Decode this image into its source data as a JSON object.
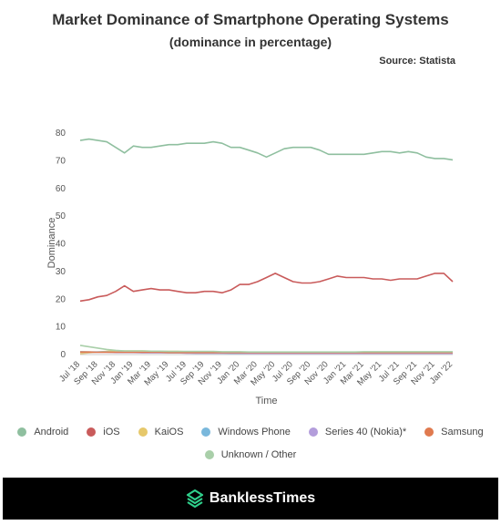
{
  "header": {
    "title": "Market Dominance of Smartphone Operating Systems",
    "subtitle": "(dominance in percentage)",
    "source": "Source: Statista"
  },
  "footer": {
    "brand": "BanklessTimes"
  },
  "colors": {
    "android": "#8fbf9f",
    "ios": "#c95b5b",
    "kaios": "#e6c86b",
    "windows_phone": "#7ab8dc",
    "series40": "#b39ddb",
    "samsung": "#e07a4f",
    "unknown": "#a9cfa9",
    "footer_bg": "#000000",
    "logo_accent": "#2fcf8b"
  },
  "chart_data": {
    "type": "line",
    "xlabel": "Time",
    "ylabel": "Dominance",
    "ylim": [
      0,
      80
    ],
    "yticks": [
      0,
      10,
      20,
      30,
      40,
      50,
      60,
      70,
      80
    ],
    "x": [
      "Jul '18",
      "Aug '18",
      "Sep '18",
      "Oct '18",
      "Nov '18",
      "Dec '18",
      "Jan '19",
      "Feb '19",
      "Mar '19",
      "Apr '19",
      "May '19",
      "Jun '19",
      "Jul '19",
      "Aug '19",
      "Sep '19",
      "Oct '19",
      "Nov '19",
      "Dec '19",
      "Jan '20",
      "Feb '20",
      "Mar '20",
      "Apr '20",
      "May '20",
      "Jun '20",
      "Jul '20",
      "Aug '20",
      "Sep '20",
      "Oct '20",
      "Nov '20",
      "Dec '20",
      "Jan '21",
      "Feb '21",
      "Mar '21",
      "Apr '21",
      "May '21",
      "Jun '21",
      "Jul '21",
      "Aug '21",
      "Sep '21",
      "Oct '21",
      "Nov '21",
      "Dec '21",
      "Jan '22"
    ],
    "xtick_labels": [
      "Jul '18",
      "Sep '18",
      "Nov '18",
      "Jan '19",
      "Mar '19",
      "May '19",
      "Jul '19",
      "Sep '19",
      "Nov '19",
      "Jan '20",
      "Mar '20",
      "May '20",
      "Jul '20",
      "Sep '20",
      "Nov '20",
      "Jan '21",
      "Mar '21",
      "May '21",
      "Jul '21",
      "Sep '21",
      "Nov '21",
      "Jan '22"
    ],
    "grid": false,
    "legend_position": "bottom",
    "series": [
      {
        "name": "Android",
        "color": "#8fbf9f",
        "values": [
          77,
          77.5,
          77,
          76.5,
          74.5,
          72.5,
          75,
          74.5,
          74.5,
          75,
          75.5,
          75.5,
          76,
          76,
          76,
          76.5,
          76,
          74.5,
          74.5,
          73.5,
          72.5,
          71,
          72.5,
          74,
          74.5,
          74.5,
          74.5,
          73.5,
          72,
          72,
          72,
          72,
          72,
          72.5,
          73,
          73,
          72.5,
          73,
          72.5,
          71,
          70.5,
          70.5,
          70
        ]
      },
      {
        "name": "iOS",
        "color": "#c95b5b",
        "values": [
          19,
          19.5,
          20.5,
          21,
          22.5,
          24.5,
          22.5,
          23,
          23.5,
          23,
          23,
          22.5,
          22,
          22,
          22.5,
          22.5,
          22,
          23,
          25,
          25,
          26,
          27.5,
          29,
          27.5,
          26,
          25.5,
          25.5,
          26,
          27,
          28,
          27.5,
          27.5,
          27.5,
          27,
          27,
          26.5,
          27,
          27,
          27,
          28,
          29,
          29,
          26
        ]
      },
      {
        "name": "KaiOS",
        "color": "#e6c86b",
        "values": [
          0,
          0.3,
          0.6,
          0.8,
          1,
          1,
          1,
          1,
          0.9,
          0.8,
          0.8,
          0.8,
          0.7,
          0.6,
          0.6,
          0.6,
          0.5,
          0.5,
          0.5,
          0.5,
          0.4,
          0.4,
          0.4,
          0.4,
          0.3,
          0.3,
          0.3,
          0.3,
          0.3,
          0.3,
          0.3,
          0.3,
          0.3,
          0.3,
          0.3,
          0.3,
          0.2,
          0.2,
          0.2,
          0.2,
          0.2,
          0.2,
          0.2
        ]
      },
      {
        "name": "Windows Phone",
        "color": "#7ab8dc",
        "values": [
          0.7,
          0.6,
          0.6,
          0.6,
          0.5,
          0.5,
          0.5,
          0.4,
          0.4,
          0.4,
          0.3,
          0.3,
          0.3,
          0.2,
          0.2,
          0.2,
          0.2,
          0.1,
          0.1,
          0.1,
          0.1,
          0.1,
          0.1,
          0.1,
          0.1,
          0.1,
          0.1,
          0.1,
          0.1,
          0.1,
          0.1,
          0.1,
          0.1,
          0.1,
          0.1,
          0.1,
          0.1,
          0.1,
          0.1,
          0.1,
          0.1,
          0.1,
          0.1
        ]
      },
      {
        "name": "Series 40 (Nokia)*",
        "color": "#b39ddb",
        "values": [
          0.5,
          0.5,
          0.5,
          0.5,
          0.4,
          0.4,
          0.4,
          0.3,
          0.3,
          0.3,
          0.3,
          0.3,
          0.2,
          0.2,
          0.2,
          0.2,
          0.2,
          0.2,
          0.2,
          0.1,
          0.1,
          0.1,
          0.1,
          0.1,
          0.1,
          0.1,
          0.1,
          0.1,
          0.1,
          0.1,
          0.1,
          0.1,
          0.1,
          0.1,
          0.1,
          0.1,
          0.1,
          0.1,
          0.1,
          0.1,
          0.1,
          0.1,
          0.1
        ]
      },
      {
        "name": "Samsung",
        "color": "#e07a4f",
        "values": [
          0.6,
          0.6,
          0.5,
          0.5,
          0.5,
          0.5,
          0.5,
          0.5,
          0.5,
          0.5,
          0.4,
          0.4,
          0.4,
          0.4,
          0.4,
          0.4,
          0.4,
          0.4,
          0.4,
          0.4,
          0.4,
          0.4,
          0.4,
          0.4,
          0.4,
          0.4,
          0.4,
          0.4,
          0.4,
          0.4,
          0.4,
          0.4,
          0.4,
          0.4,
          0.4,
          0.4,
          0.4,
          0.4,
          0.4,
          0.4,
          0.4,
          0.4,
          0.4
        ]
      },
      {
        "name": "Unknown / Other",
        "color": "#a9cfa9",
        "values": [
          3,
          2.5,
          2,
          1.5,
          1.2,
          1,
          1,
          1,
          0.9,
          0.9,
          0.8,
          0.8,
          0.8,
          0.8,
          0.8,
          0.8,
          0.7,
          0.7,
          0.7,
          0.6,
          0.6,
          0.6,
          0.6,
          0.6,
          0.6,
          0.6,
          0.6,
          0.6,
          0.6,
          0.6,
          0.6,
          0.6,
          0.7,
          0.7,
          0.7,
          0.7,
          0.7,
          0.7,
          0.7,
          0.7,
          0.7,
          0.7,
          0.7
        ]
      }
    ]
  }
}
